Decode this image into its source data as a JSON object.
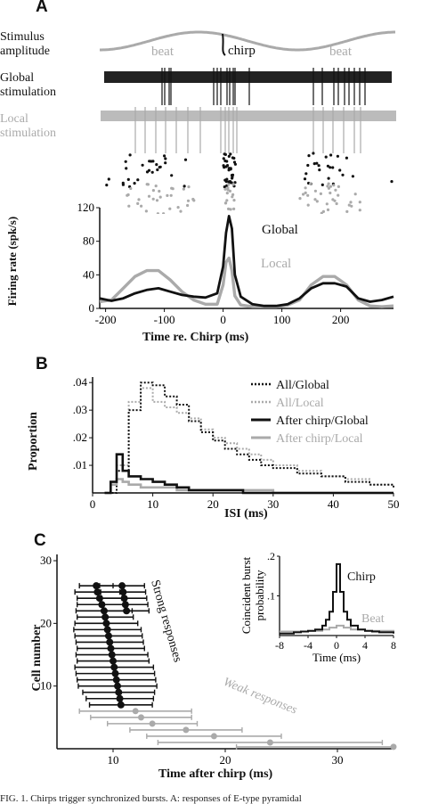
{
  "panelA": {
    "label": "A",
    "rows": {
      "stimulus": "Stimulus amplitude",
      "stimulus_lines": [
        "Stimulus",
        "amplitude"
      ],
      "global": [
        "Global",
        "stimulation"
      ],
      "local": [
        "Local",
        "stimulation"
      ]
    },
    "annotations": {
      "beat_left": "beat",
      "chirp": "chirp",
      "beat_right": "beat"
    },
    "chart_data": {
      "type": "line",
      "xlabel": "Time re. Chirp (ms)",
      "ylabel": "Firing rate (spk/s)",
      "xlim": [
        -210,
        290
      ],
      "ylim": [
        0,
        120
      ],
      "xticks": [
        -200,
        -100,
        0,
        100,
        200
      ],
      "yticks": [
        0,
        40,
        80,
        120
      ],
      "series": [
        {
          "name": "Global",
          "color": "#111111",
          "x": [
            -210,
            -190,
            -170,
            -150,
            -130,
            -110,
            -90,
            -70,
            -50,
            -30,
            -10,
            0,
            5,
            10,
            15,
            20,
            30,
            50,
            70,
            90,
            110,
            130,
            150,
            170,
            190,
            210,
            230,
            250,
            270,
            290
          ],
          "y": [
            12,
            9,
            12,
            18,
            22,
            24,
            20,
            16,
            14,
            13,
            18,
            50,
            90,
            110,
            95,
            40,
            14,
            5,
            3,
            3,
            5,
            12,
            24,
            30,
            30,
            26,
            12,
            8,
            10,
            14
          ]
        },
        {
          "name": "Local",
          "color": "#aaaaaa",
          "x": [
            -210,
            -190,
            -170,
            -150,
            -130,
            -110,
            -90,
            -70,
            -50,
            -30,
            -10,
            0,
            5,
            10,
            15,
            20,
            30,
            50,
            70,
            90,
            110,
            130,
            150,
            170,
            190,
            210,
            230,
            250,
            270,
            290
          ],
          "y": [
            8,
            10,
            24,
            38,
            45,
            45,
            34,
            20,
            10,
            5,
            5,
            28,
            55,
            60,
            45,
            15,
            4,
            2,
            2,
            2,
            4,
            10,
            28,
            38,
            38,
            28,
            10,
            3,
            2,
            3
          ]
        }
      ]
    }
  },
  "panelB": {
    "label": "B",
    "chart_data": {
      "type": "line",
      "xlabel": "ISI (ms)",
      "ylabel": "Proportion",
      "xlim": [
        0,
        50
      ],
      "ylim": [
        0,
        0.042
      ],
      "xticks": [
        0,
        10,
        20,
        30,
        40,
        50
      ],
      "ytick_labels": [
        ".01",
        ".02",
        ".03",
        ".04"
      ],
      "yticks": [
        0.01,
        0.02,
        0.03,
        0.04
      ],
      "series": [
        {
          "name": "All/Global",
          "color": "#111111",
          "style": "dotted",
          "x": [
            2,
            4,
            6,
            8,
            10,
            12,
            14,
            16,
            18,
            20,
            22,
            24,
            26,
            28,
            30,
            34,
            38,
            42,
            46,
            50
          ],
          "y": [
            0,
            0.008,
            0.03,
            0.04,
            0.039,
            0.035,
            0.032,
            0.026,
            0.022,
            0.019,
            0.016,
            0.014,
            0.012,
            0.01,
            0.009,
            0.007,
            0.006,
            0.004,
            0.003,
            0.002
          ]
        },
        {
          "name": "All/Local",
          "color": "#aaaaaa",
          "style": "dotted",
          "x": [
            2,
            4,
            6,
            8,
            10,
            12,
            14,
            16,
            18,
            20,
            22,
            24,
            26,
            28,
            30,
            34,
            38,
            42,
            46,
            50
          ],
          "y": [
            0,
            0.01,
            0.033,
            0.038,
            0.033,
            0.031,
            0.029,
            0.027,
            0.023,
            0.02,
            0.018,
            0.016,
            0.014,
            0.012,
            0.01,
            0.008,
            0.006,
            0.005,
            0.003,
            0.002
          ]
        },
        {
          "name": "After chirp/Global",
          "color": "#111111",
          "style": "solid",
          "x": [
            2,
            3,
            4,
            5,
            6,
            8,
            10,
            12,
            14,
            16,
            20,
            25,
            30,
            40,
            50
          ],
          "y": [
            0,
            0.004,
            0.014,
            0.008,
            0.006,
            0.005,
            0.004,
            0.003,
            0.002,
            0.001,
            0.001,
            0,
            0,
            0,
            0
          ]
        },
        {
          "name": "After chirp/Local",
          "color": "#aaaaaa",
          "style": "solid",
          "x": [
            2,
            3,
            4,
            5,
            6,
            8,
            10,
            12,
            14,
            16,
            20,
            25,
            30,
            40,
            50
          ],
          "y": [
            0,
            0.003,
            0.005,
            0.004,
            0.003,
            0.002,
            0.002,
            0.002,
            0.001,
            0.001,
            0.001,
            0.001,
            0,
            0,
            0
          ]
        }
      ]
    }
  },
  "panelC": {
    "label": "C",
    "annotations": {
      "strong": "Strong responses",
      "weak": "Weak responses"
    },
    "chart_data": {
      "type": "scatter",
      "xlabel": "Time after chirp (ms)",
      "ylabel": "Cell number",
      "xlim": [
        5,
        35
      ],
      "ylim": [
        0,
        31
      ],
      "xticks": [
        10,
        20,
        30
      ],
      "yticks": [
        10,
        20,
        30
      ],
      "series": [
        {
          "name": "Strong responses",
          "color": "#111111",
          "x": [
            8.5,
            8.6,
            8.8,
            9.0,
            9.2,
            9.3,
            9.4,
            9.5,
            9.6,
            9.7,
            9.8,
            9.9,
            10.0,
            10.1,
            10.2,
            10.3,
            10.4,
            10.5,
            10.6,
            10.7,
            10.8,
            10.9,
            11.0,
            11.1,
            11.2
          ],
          "y": [
            26,
            25,
            24,
            23,
            22,
            21,
            20,
            19,
            18,
            17,
            16,
            15,
            14,
            13,
            12,
            11,
            10,
            9,
            8,
            7,
            26,
            25,
            24,
            23,
            22
          ],
          "err": [
            1.5,
            2,
            2,
            2.2,
            2.5,
            2.5,
            2.8,
            3,
            3,
            3,
            3,
            3.2,
            3.2,
            3.5,
            3.5,
            3.5,
            3.5,
            3.2,
            3,
            2.8,
            2,
            2,
            2,
            2,
            2
          ]
        },
        {
          "name": "Weak responses",
          "color": "#aaaaaa",
          "x": [
            12.0,
            12.5,
            13.5,
            16.5,
            19.0,
            24.0,
            35.0
          ],
          "y": [
            6,
            5,
            4,
            3,
            2,
            1,
            0.3
          ],
          "err": [
            5,
            4.5,
            4,
            5,
            6,
            10,
            14
          ]
        }
      ]
    },
    "inset": {
      "chart_data": {
        "type": "line",
        "xlabel": "Time (ms)",
        "ylabel": "Coincident burst probability",
        "ylabel_lines": [
          "Coincident burst",
          "probability"
        ],
        "xlim": [
          -8,
          8
        ],
        "ylim": [
          0,
          0.2
        ],
        "xticks": [
          -8,
          -4,
          0,
          4,
          8
        ],
        "ytick_labels": [
          ".1",
          ".2"
        ],
        "yticks": [
          0.1,
          0.2
        ],
        "series": [
          {
            "name": "Chirp",
            "color": "#111111",
            "x": [
              -8,
              -6,
              -5,
              -4,
              -3,
              -2,
              -1.5,
              -1,
              -0.5,
              0,
              0.5,
              1,
              1.5,
              2,
              3,
              4,
              5,
              6,
              8
            ],
            "y": [
              0.005,
              0.008,
              0.01,
              0.012,
              0.015,
              0.025,
              0.04,
              0.06,
              0.11,
              0.18,
              0.11,
              0.06,
              0.04,
              0.025,
              0.015,
              0.012,
              0.01,
              0.008,
              0.005
            ]
          },
          {
            "name": "Beat",
            "color": "#aaaaaa",
            "x": [
              -8,
              -4,
              -2,
              -1,
              0,
              1,
              2,
              4,
              8
            ],
            "y": [
              0.01,
              0.012,
              0.015,
              0.02,
              0.025,
              0.02,
              0.015,
              0.012,
              0.01
            ]
          }
        ]
      }
    }
  },
  "caption": "FIG. 1. Chirps trigger synchronized bursts. A: responses of E-type pyramidal"
}
